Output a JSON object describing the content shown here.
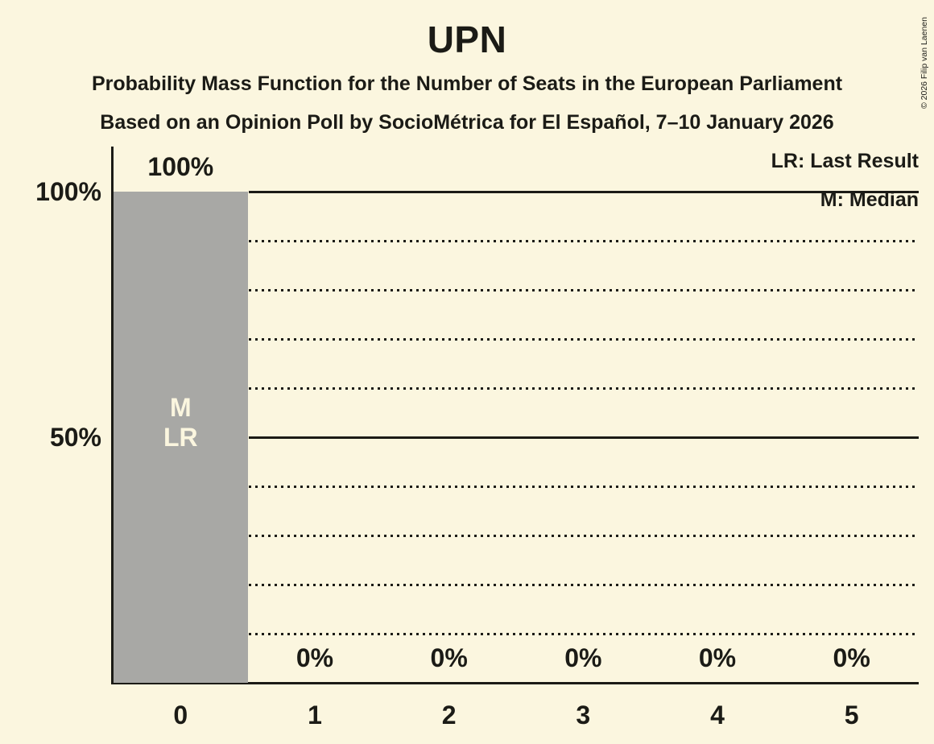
{
  "title": "UPN",
  "subtitles": [
    "Probability Mass Function for the Number of Seats in the European Parliament",
    "Based on an Opinion Poll by SocioMétrica for El Español, 7–10 January 2026"
  ],
  "copyright": "© 2026 Filip van Laenen",
  "legend": {
    "last_result": "LR: Last Result",
    "median": "M: Median"
  },
  "colors": {
    "background": "#FBF6DF",
    "bar": "#A8A8A5",
    "text": "#1B1B16"
  },
  "chart_data": {
    "type": "bar",
    "title": "UPN",
    "categories": [
      "0",
      "1",
      "2",
      "3",
      "4",
      "5"
    ],
    "values": [
      100,
      0,
      0,
      0,
      0,
      0
    ],
    "bar_value_labels": [
      "100%",
      "0%",
      "0%",
      "0%",
      "0%",
      "0%"
    ],
    "xlabel": "",
    "ylabel": "",
    "ylim": [
      0,
      100
    ],
    "y_ticks": [
      {
        "value": 100,
        "label": "100%"
      },
      {
        "value": 50,
        "label": "50%"
      }
    ],
    "gridlines": {
      "every_percent": 10,
      "solid_at": [
        50,
        100
      ],
      "style_other": "dotted"
    },
    "legend_position": "top-right",
    "annotations": {
      "bar_index": 0,
      "lines": [
        "M",
        "LR"
      ],
      "meaning": [
        "Median",
        "Last Result"
      ]
    }
  }
}
